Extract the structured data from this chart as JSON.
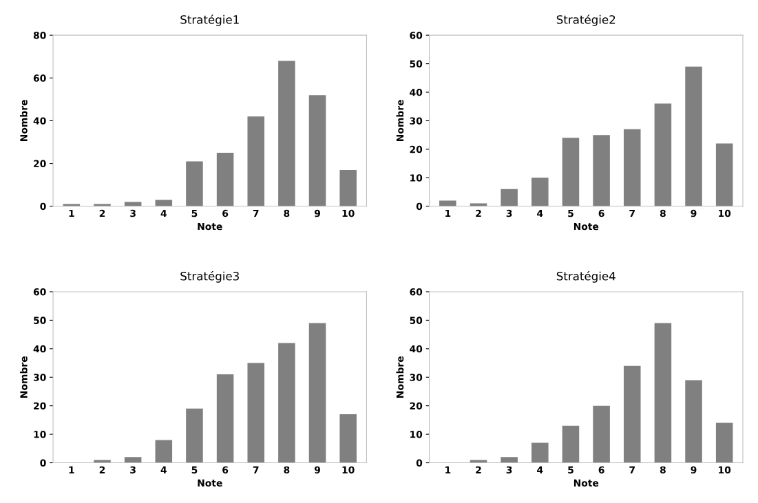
{
  "chart_data": [
    {
      "type": "bar",
      "title": "Stratégie1",
      "xlabel": "Note",
      "ylabel": "Nombre",
      "categories": [
        "1",
        "2",
        "3",
        "4",
        "5",
        "6",
        "7",
        "8",
        "9",
        "10"
      ],
      "values": [
        1,
        1,
        2,
        3,
        21,
        25,
        42,
        68,
        52,
        17
      ],
      "color": "#808080",
      "ylim": [
        0,
        80
      ],
      "yticks": [
        0,
        20,
        40,
        60,
        80
      ],
      "grid": false,
      "legend": false
    },
    {
      "type": "bar",
      "title": "Stratégie2",
      "xlabel": "Note",
      "ylabel": "Nombre",
      "categories": [
        "1",
        "2",
        "3",
        "4",
        "5",
        "6",
        "7",
        "8",
        "9",
        "10"
      ],
      "values": [
        2,
        1,
        6,
        10,
        24,
        25,
        27,
        36,
        49,
        22
      ],
      "color": "#808080",
      "ylim": [
        0,
        60
      ],
      "yticks": [
        0,
        10,
        20,
        30,
        40,
        50,
        60
      ],
      "grid": false,
      "legend": false
    },
    {
      "type": "bar",
      "title": "Stratégie3",
      "xlabel": "Note",
      "ylabel": "Nombre",
      "categories": [
        "1",
        "2",
        "3",
        "4",
        "5",
        "6",
        "7",
        "8",
        "9",
        "10"
      ],
      "values": [
        0,
        1,
        2,
        8,
        19,
        31,
        35,
        42,
        49,
        17
      ],
      "color": "#808080",
      "ylim": [
        0,
        60
      ],
      "yticks": [
        0,
        10,
        20,
        30,
        40,
        50,
        60
      ],
      "grid": false,
      "legend": false
    },
    {
      "type": "bar",
      "title": "Stratégie4",
      "xlabel": "Note",
      "ylabel": "Nombre",
      "categories": [
        "1",
        "2",
        "3",
        "4",
        "5",
        "6",
        "7",
        "8",
        "9",
        "10"
      ],
      "values": [
        0,
        1,
        2,
        7,
        13,
        20,
        34,
        49,
        29,
        14
      ],
      "color": "#808080",
      "ylim": [
        0,
        60
      ],
      "yticks": [
        0,
        10,
        20,
        30,
        40,
        50,
        60
      ],
      "grid": false,
      "legend": false
    }
  ]
}
